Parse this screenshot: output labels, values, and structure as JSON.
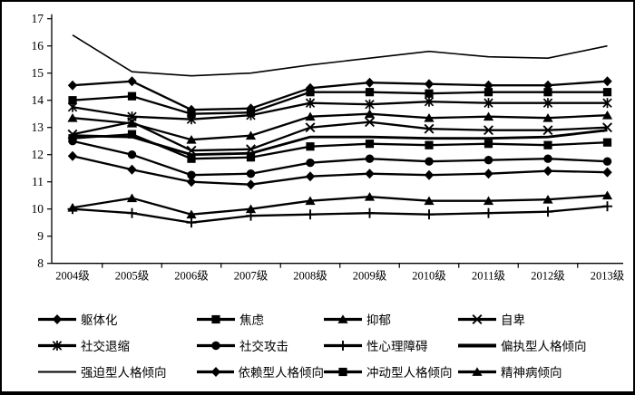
{
  "chart_data": {
    "type": "line",
    "title": "",
    "xlabel": "",
    "ylabel": "",
    "categories": [
      "2004级",
      "2005级",
      "2006级",
      "2007级",
      "2008级",
      "2009级",
      "2010级",
      "2011级",
      "2012级",
      "2013级"
    ],
    "ylim": [
      8,
      17
    ],
    "y_ticks": [
      8,
      9,
      10,
      11,
      12,
      13,
      14,
      15,
      16,
      17
    ],
    "grid": false,
    "legend_position": "bottom",
    "line_color": "#000000",
    "background_color": "#ffffff",
    "series": [
      {
        "name": "躯体化",
        "marker": "diamond",
        "line_width": 2.3,
        "values": [
          14.55,
          14.7,
          13.65,
          13.7,
          14.45,
          14.65,
          14.6,
          14.55,
          14.55,
          14.7
        ]
      },
      {
        "name": "焦虑",
        "marker": "square",
        "line_width": 2.3,
        "values": [
          14.0,
          14.15,
          13.5,
          13.55,
          14.3,
          14.3,
          14.25,
          14.3,
          14.3,
          14.3
        ]
      },
      {
        "name": "抑郁",
        "marker": "triangle",
        "line_width": 2.3,
        "values": [
          13.35,
          13.15,
          12.55,
          12.7,
          13.4,
          13.5,
          13.35,
          13.4,
          13.35,
          13.45
        ]
      },
      {
        "name": "自卑",
        "marker": "x",
        "line_width": 2.3,
        "values": [
          12.75,
          13.2,
          12.15,
          12.2,
          13.0,
          13.2,
          12.95,
          12.9,
          12.9,
          13.0
        ]
      },
      {
        "name": "社交退缩",
        "marker": "asterisk",
        "line_width": 2.3,
        "values": [
          13.75,
          13.4,
          13.3,
          13.45,
          13.9,
          13.85,
          13.95,
          13.9,
          13.9,
          13.9
        ]
      },
      {
        "name": "社交攻击",
        "marker": "circle",
        "line_width": 2.3,
        "values": [
          12.5,
          12.0,
          11.25,
          11.3,
          11.7,
          11.85,
          11.75,
          11.8,
          11.85,
          11.75
        ]
      },
      {
        "name": "性心理障碍",
        "marker": "plus",
        "line_width": 2.3,
        "values": [
          10.0,
          9.85,
          9.5,
          9.75,
          9.8,
          9.85,
          9.8,
          9.85,
          9.9,
          10.1
        ]
      },
      {
        "name": "偏执型人格倾向",
        "marker": "none",
        "line_width": 2.8,
        "values": [
          12.7,
          12.65,
          12.0,
          12.05,
          12.65,
          12.65,
          12.6,
          12.6,
          12.65,
          12.9
        ]
      },
      {
        "name": "强迫型人格倾向",
        "marker": "none",
        "line_width": 1.6,
        "values": [
          16.4,
          15.05,
          14.9,
          15.0,
          15.3,
          15.55,
          15.8,
          15.6,
          15.55,
          16.0
        ]
      },
      {
        "name": "依赖型人格倾向",
        "marker": "diamond",
        "line_width": 2.3,
        "values": [
          11.95,
          11.45,
          11.0,
          10.9,
          11.2,
          11.3,
          11.25,
          11.3,
          11.4,
          11.35
        ]
      },
      {
        "name": "冲动型人格倾向",
        "marker": "square",
        "line_width": 2.3,
        "values": [
          12.6,
          12.75,
          11.85,
          11.9,
          12.3,
          12.4,
          12.35,
          12.4,
          12.35,
          12.45
        ]
      },
      {
        "name": "精神病倾向",
        "marker": "triangle",
        "line_width": 2.3,
        "values": [
          10.05,
          10.4,
          9.8,
          10.0,
          10.3,
          10.45,
          10.3,
          10.3,
          10.35,
          10.5
        ]
      }
    ]
  }
}
